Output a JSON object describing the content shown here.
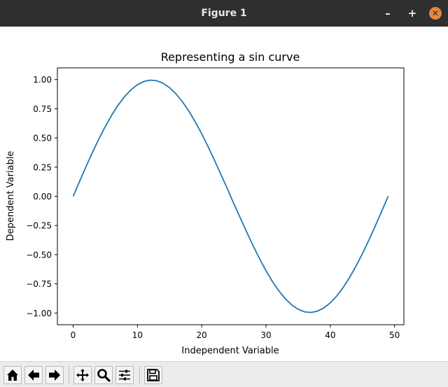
{
  "window": {
    "title": "Figure 1",
    "minimize_label": "–",
    "maximize_label": "+",
    "close_label": "✕"
  },
  "toolbar": {
    "buttons": [
      {
        "name": "home-button",
        "icon": "home-icon"
      },
      {
        "name": "back-button",
        "icon": "arrow-left-icon"
      },
      {
        "name": "forward-button",
        "icon": "arrow-right-icon"
      },
      {
        "name": "pan-button",
        "icon": "move-icon"
      },
      {
        "name": "zoom-button",
        "icon": "magnifier-icon"
      },
      {
        "name": "configure-subplots-button",
        "icon": "sliders-icon"
      },
      {
        "name": "save-button",
        "icon": "floppy-disk-icon"
      }
    ]
  },
  "chart_data": {
    "type": "line",
    "title": "Representing a sin curve",
    "xlabel": "Independent Variable",
    "ylabel": "Dependent Variable",
    "xlim": [
      -2.45,
      51.45
    ],
    "ylim": [
      -1.1,
      1.1
    ],
    "xticks": [
      0,
      10,
      20,
      30,
      40,
      50
    ],
    "yticks": [
      1.0,
      0.75,
      0.5,
      0.25,
      0.0,
      -0.25,
      -0.5,
      -0.75,
      -1.0
    ],
    "ytick_labels": [
      "1.00",
      "0.75",
      "0.50",
      "0.25",
      "0.00",
      "−0.25",
      "−0.50",
      "−0.75",
      "−1.00"
    ],
    "xtick_labels": [
      "0",
      "10",
      "20",
      "30",
      "40",
      "50"
    ],
    "grid": false,
    "color": "#1f77b4",
    "x": [
      0,
      1,
      2,
      3,
      4,
      5,
      6,
      7,
      8,
      9,
      10,
      11,
      12,
      13,
      14,
      15,
      16,
      17,
      18,
      19,
      20,
      21,
      22,
      23,
      24,
      25,
      26,
      27,
      28,
      29,
      30,
      31,
      32,
      33,
      34,
      35,
      36,
      37,
      38,
      39,
      40,
      41,
      42,
      43,
      44,
      45,
      46,
      47,
      48,
      49
    ],
    "y": [
      0.0,
      0.1279,
      0.2537,
      0.3753,
      0.4907,
      0.5979,
      0.6953,
      0.7811,
      0.8539,
      0.9125,
      0.956,
      0.9836,
      0.9949,
      0.9897,
      0.9681,
      0.9304,
      0.8774,
      0.8101,
      0.7296,
      0.6374,
      0.535,
      0.4241,
      0.3068,
      0.1849,
      0.0641,
      -0.0641,
      -0.1849,
      -0.3068,
      -0.4241,
      -0.535,
      -0.6374,
      -0.7296,
      -0.8101,
      -0.8774,
      -0.9304,
      -0.9681,
      -0.9897,
      -0.9949,
      -0.9836,
      -0.956,
      -0.9125,
      -0.8539,
      -0.7811,
      -0.6953,
      -0.5979,
      -0.4907,
      -0.3753,
      -0.2537,
      -0.1279,
      0.0
    ]
  }
}
